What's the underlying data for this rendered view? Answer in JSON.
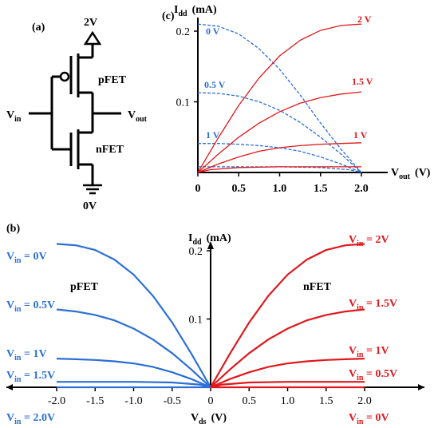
{
  "colors": {
    "pfet": "#2b6fd6",
    "nfet": "#e0181c",
    "ink": "#000000"
  },
  "circuit": {
    "panel_label": "(a)",
    "vdd_label": "2V",
    "gnd_label": "0V",
    "vin_main": "V",
    "vin_sub": "in",
    "vout_main": "V",
    "vout_sub": "out",
    "pfet_label": "pFET",
    "nfet_label": "nFET"
  },
  "chart_data": [
    {
      "panel_label": "(c)",
      "type": "line",
      "ylabel_main": "I",
      "ylabel_sub": "dd",
      "ylabel_unit": "(mA)",
      "xlabel_main": "V",
      "xlabel_sub": "out",
      "xlabel_unit": "(V)",
      "xlim": [
        0,
        2.1
      ],
      "ylim": [
        0,
        0.22
      ],
      "xticks": [
        "0",
        "0.5",
        "1.0",
        "1.5",
        "2.0"
      ],
      "yticks": [
        "0.1",
        "0.2"
      ],
      "pfet_labels": [
        "0 V",
        "0.5 V",
        "1 V"
      ],
      "nfet_labels": [
        "2 V",
        "1.5 V",
        "1 V"
      ],
      "series": [
        {
          "name": "0 V",
          "device": "pFET",
          "x": [
            0,
            0.25,
            0.5,
            0.75,
            1.0,
            1.25,
            1.5,
            1.75,
            2.0
          ],
          "y": [
            0.21,
            0.207,
            0.196,
            0.175,
            0.146,
            0.11,
            0.07,
            0.033,
            0.0
          ]
        },
        {
          "name": "0.5 V",
          "device": "pFET",
          "x": [
            0,
            0.25,
            0.5,
            0.75,
            1.0,
            1.25,
            1.5,
            1.75,
            2.0
          ],
          "y": [
            0.113,
            0.112,
            0.108,
            0.1,
            0.088,
            0.071,
            0.05,
            0.026,
            0.0
          ]
        },
        {
          "name": "1 V",
          "device": "pFET",
          "x": [
            0,
            0.25,
            0.5,
            0.75,
            1.0,
            1.25,
            1.5,
            1.75,
            2.0
          ],
          "y": [
            0.041,
            0.041,
            0.04,
            0.038,
            0.035,
            0.03,
            0.022,
            0.012,
            0.0
          ]
        },
        {
          "name": "1.5 V",
          "device": "pFET",
          "x": [
            0,
            0.5,
            1.0,
            1.5,
            1.85,
            2.0
          ],
          "y": [
            0.008,
            0.008,
            0.008,
            0.007,
            0.004,
            0.0
          ]
        },
        {
          "name": "2 V",
          "device": "nFET",
          "x": [
            0,
            0.25,
            0.5,
            0.75,
            1.0,
            1.25,
            1.5,
            1.75,
            2.0
          ],
          "y": [
            0.0,
            0.049,
            0.095,
            0.134,
            0.165,
            0.187,
            0.201,
            0.208,
            0.21
          ]
        },
        {
          "name": "1.5 V",
          "device": "nFET",
          "x": [
            0,
            0.25,
            0.5,
            0.75,
            1.0,
            1.25,
            1.5,
            1.75,
            2.0
          ],
          "y": [
            0.0,
            0.026,
            0.05,
            0.07,
            0.086,
            0.098,
            0.106,
            0.111,
            0.114
          ]
        },
        {
          "name": "1 V",
          "device": "nFET",
          "x": [
            0,
            0.25,
            0.5,
            0.75,
            1.0,
            1.25,
            1.5,
            1.75,
            2.0
          ],
          "y": [
            0.0,
            0.012,
            0.022,
            0.03,
            0.035,
            0.038,
            0.04,
            0.041,
            0.042
          ]
        },
        {
          "name": "0.5 V",
          "device": "nFET",
          "x": [
            0,
            0.15,
            0.5,
            1.0,
            1.5,
            2.0
          ],
          "y": [
            0.0,
            0.004,
            0.007,
            0.008,
            0.008,
            0.008
          ]
        }
      ]
    },
    {
      "panel_label": "(b)",
      "type": "line",
      "ylabel_main": "I",
      "ylabel_sub": "dd",
      "ylabel_unit": "(mA)",
      "xlabel_main": "V",
      "xlabel_sub": "ds",
      "xlabel_unit": "(V)",
      "xlim": [
        -2.5,
        2.7
      ],
      "ylim": [
        0,
        0.23
      ],
      "xticks": [
        "-2.0",
        "-1.5",
        "-1.0",
        "-0.5",
        "0",
        "0.5",
        "1.0",
        "1.5",
        "2.0"
      ],
      "yticks": [
        "0.1",
        "0.2"
      ],
      "pfet_title": "pFET",
      "nfet_title": "nFET",
      "pfet_labels": [
        {
          "main": "V",
          "sub": "in",
          "rest": " = 0V"
        },
        {
          "main": "V",
          "sub": "in",
          "rest": " = 0.5V"
        },
        {
          "main": "V",
          "sub": "in",
          "rest": " = 1V"
        },
        {
          "main": "V",
          "sub": "in",
          "rest": " = 1.5V"
        },
        {
          "main": "V",
          "sub": "in",
          "rest": " = 2.0V"
        }
      ],
      "nfet_labels": [
        {
          "main": "V",
          "sub": "in",
          "rest": " = 2V"
        },
        {
          "main": "V",
          "sub": "in",
          "rest": " = 1.5V"
        },
        {
          "main": "V",
          "sub": "in",
          "rest": " = 1V"
        },
        {
          "main": "V",
          "sub": "in",
          "rest": " = 0.5V"
        },
        {
          "main": "V",
          "sub": "in",
          "rest": " = 0V"
        }
      ],
      "series": [
        {
          "name": "Vin = 0V",
          "device": "pFET",
          "x": [
            -2.0,
            -1.75,
            -1.5,
            -1.25,
            -1.0,
            -0.75,
            -0.5,
            -0.25,
            0.0
          ],
          "y": [
            0.21,
            0.208,
            0.201,
            0.187,
            0.165,
            0.134,
            0.095,
            0.049,
            0.0
          ]
        },
        {
          "name": "Vin = 0.5V",
          "device": "pFET",
          "x": [
            -2.0,
            -1.75,
            -1.5,
            -1.25,
            -1.0,
            -0.75,
            -0.5,
            -0.25,
            0.0
          ],
          "y": [
            0.114,
            0.111,
            0.106,
            0.098,
            0.086,
            0.07,
            0.05,
            0.026,
            0.0
          ]
        },
        {
          "name": "Vin = 1V",
          "device": "pFET",
          "x": [
            -2.0,
            -1.75,
            -1.5,
            -1.25,
            -1.0,
            -0.75,
            -0.5,
            -0.25,
            0.0
          ],
          "y": [
            0.042,
            0.041,
            0.04,
            0.038,
            0.035,
            0.03,
            0.022,
            0.012,
            0.0
          ]
        },
        {
          "name": "Vin = 1.5V",
          "device": "pFET",
          "x": [
            -2.0,
            -1.5,
            -1.0,
            -0.5,
            -0.15,
            0.0
          ],
          "y": [
            0.008,
            0.008,
            0.008,
            0.007,
            0.004,
            0.0
          ]
        },
        {
          "name": "Vin = 2.0V",
          "device": "pFET",
          "x": [
            -2.0,
            0.0
          ],
          "y": [
            0.0,
            0.0
          ]
        },
        {
          "name": "Vin = 2V",
          "device": "nFET",
          "x": [
            0.0,
            0.25,
            0.5,
            0.75,
            1.0,
            1.25,
            1.5,
            1.75,
            2.0
          ],
          "y": [
            0.0,
            0.049,
            0.095,
            0.134,
            0.165,
            0.187,
            0.201,
            0.208,
            0.21
          ]
        },
        {
          "name": "Vin = 1.5V",
          "device": "nFET",
          "x": [
            0.0,
            0.25,
            0.5,
            0.75,
            1.0,
            1.25,
            1.5,
            1.75,
            2.0
          ],
          "y": [
            0.0,
            0.026,
            0.05,
            0.07,
            0.086,
            0.098,
            0.106,
            0.111,
            0.114
          ]
        },
        {
          "name": "Vin = 1V",
          "device": "nFET",
          "x": [
            0.0,
            0.25,
            0.5,
            0.75,
            1.0,
            1.25,
            1.5,
            1.75,
            2.0
          ],
          "y": [
            0.0,
            0.012,
            0.022,
            0.03,
            0.035,
            0.038,
            0.04,
            0.041,
            0.042
          ]
        },
        {
          "name": "Vin = 0.5V",
          "device": "nFET",
          "x": [
            0.0,
            0.15,
            0.5,
            1.0,
            1.5,
            2.0
          ],
          "y": [
            0.0,
            0.004,
            0.007,
            0.008,
            0.008,
            0.008
          ]
        },
        {
          "name": "Vin = 0V",
          "device": "nFET",
          "x": [
            0.0,
            2.0
          ],
          "y": [
            0.0,
            0.0
          ]
        }
      ]
    }
  ]
}
